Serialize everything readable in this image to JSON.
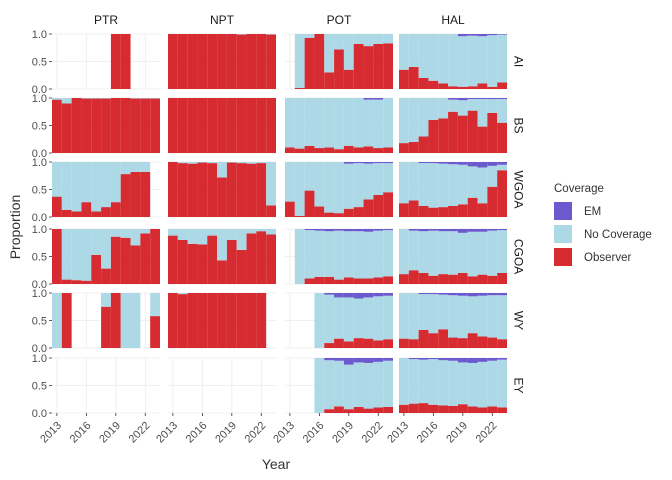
{
  "chart_data": {
    "type": "bar",
    "stacked": true,
    "xlabel": "Year",
    "ylabel": "Proportion",
    "facet_cols": [
      "PTR",
      "NPT",
      "POT",
      "HAL"
    ],
    "facet_rows": [
      "AI",
      "BS",
      "WGOA",
      "CGOA",
      "WY",
      "EY"
    ],
    "years": [
      2013,
      2014,
      2015,
      2016,
      2017,
      2018,
      2019,
      2020,
      2021,
      2022,
      2023
    ],
    "x_ticks": [
      2013,
      2016,
      2019,
      2022
    ],
    "x_tick_labels": [
      "2013",
      "2016",
      "2019",
      "2022"
    ],
    "ylim": [
      0,
      1
    ],
    "y_ticks": [
      0,
      0.5,
      1
    ],
    "y_tick_labels": [
      "0.0",
      "0.5",
      "1.0"
    ],
    "grid": true,
    "legend": {
      "title": "Coverage",
      "position": "right",
      "entries": [
        "EM",
        "No Coverage",
        "Observer"
      ]
    },
    "colors": {
      "EM": "#6a5acd",
      "No Coverage": "#add8e6",
      "Observer": "#d62b30"
    },
    "observer": {
      "PTR": {
        "AI": [
          null,
          null,
          null,
          null,
          null,
          null,
          1.0,
          1.0,
          null,
          null,
          null
        ],
        "BS": [
          0.97,
          0.9,
          1.0,
          0.99,
          0.99,
          0.99,
          1.0,
          1.0,
          0.99,
          0.99,
          0.99
        ],
        "WGOA": [
          0.37,
          0.13,
          0.1,
          0.27,
          0.1,
          0.18,
          0.27,
          0.78,
          0.82,
          0.82,
          null
        ],
        "CGOA": [
          1.0,
          0.08,
          0.07,
          0.06,
          0.53,
          0.28,
          0.86,
          0.84,
          0.7,
          0.92,
          1.0
        ],
        "WY": [
          0.0,
          1.0,
          null,
          null,
          null,
          0.75,
          1.0,
          0.0,
          0.0,
          null,
          0.58
        ],
        "EY": [
          null,
          null,
          null,
          null,
          null,
          null,
          null,
          null,
          null,
          null,
          null
        ]
      },
      "NPT": {
        "AI": [
          1.0,
          1.0,
          1.0,
          1.0,
          1.0,
          1.0,
          1.0,
          0.99,
          1.0,
          1.0,
          0.99
        ],
        "BS": [
          1.0,
          1.0,
          1.0,
          1.0,
          1.0,
          1.0,
          1.0,
          1.0,
          1.0,
          1.0,
          1.0
        ],
        "WGOA": [
          1.0,
          0.98,
          0.97,
          0.99,
          0.98,
          0.72,
          0.99,
          0.98,
          0.97,
          0.98,
          0.21
        ],
        "CGOA": [
          0.88,
          0.8,
          0.73,
          0.72,
          0.88,
          0.43,
          0.8,
          0.62,
          0.92,
          0.96,
          0.9
        ],
        "WY": [
          1.0,
          0.98,
          1.0,
          1.0,
          1.0,
          1.0,
          1.0,
          1.0,
          1.0,
          1.0,
          null
        ],
        "EY": [
          null,
          null,
          null,
          null,
          null,
          null,
          null,
          null,
          null,
          null,
          null
        ]
      },
      "POT": {
        "AI": [
          null,
          0.02,
          0.93,
          1.0,
          0.3,
          0.72,
          0.35,
          0.82,
          0.78,
          0.82,
          0.83
        ],
        "BS": [
          0.1,
          0.08,
          0.13,
          0.09,
          0.1,
          0.07,
          0.13,
          0.1,
          0.12,
          0.09,
          0.1
        ],
        "WGOA": [
          0.28,
          0.02,
          0.48,
          0.19,
          0.08,
          0.07,
          0.15,
          0.18,
          0.32,
          0.4,
          0.45
        ],
        "CGOA": [
          null,
          0.0,
          0.1,
          0.13,
          0.13,
          0.08,
          0.12,
          0.1,
          0.1,
          0.12,
          0.14
        ],
        "WY": [
          null,
          null,
          null,
          0.0,
          0.09,
          0.17,
          0.12,
          0.18,
          0.17,
          0.14,
          0.16
        ],
        "EY": [
          null,
          null,
          null,
          0.0,
          0.07,
          0.12,
          0.07,
          0.11,
          0.08,
          0.1,
          0.11
        ]
      },
      "HAL": {
        "AI": [
          0.35,
          0.4,
          0.2,
          0.15,
          0.1,
          0.05,
          0.04,
          0.05,
          0.1,
          0.04,
          0.12
        ],
        "BS": [
          0.18,
          0.2,
          0.3,
          0.6,
          0.63,
          0.75,
          0.68,
          0.77,
          0.48,
          0.73,
          0.55
        ],
        "WGOA": [
          0.25,
          0.3,
          0.2,
          0.17,
          0.18,
          0.2,
          0.23,
          0.35,
          0.25,
          0.55,
          0.85
        ],
        "CGOA": [
          0.18,
          0.25,
          0.2,
          0.15,
          0.18,
          0.17,
          0.2,
          0.14,
          0.17,
          0.15,
          0.2
        ],
        "WY": [
          0.17,
          0.16,
          0.33,
          0.27,
          0.34,
          0.19,
          0.18,
          0.27,
          0.21,
          0.19,
          0.16
        ],
        "EY": [
          0.15,
          0.17,
          0.18,
          0.15,
          0.14,
          0.13,
          0.16,
          0.12,
          0.1,
          0.12,
          0.1
        ]
      }
    },
    "em": {
      "PTR": {},
      "NPT": {},
      "POT": {
        "AI": [
          0,
          0,
          0,
          0,
          0,
          0,
          0,
          0,
          0,
          0,
          0
        ],
        "BS": [
          0,
          0,
          0,
          0,
          0,
          0,
          0,
          0,
          0.03,
          0.03,
          0
        ],
        "WGOA": [
          0,
          0,
          0,
          0,
          0,
          0,
          0.03,
          0.02,
          0.03,
          0.02,
          0.02
        ],
        "CGOA": [
          0,
          0,
          0.02,
          0.03,
          0.04,
          0.03,
          0.04,
          0.04,
          0.05,
          0.03,
          0.02
        ],
        "WY": [
          0,
          0,
          0,
          0,
          0.03,
          0.08,
          0.08,
          0.1,
          0.08,
          0.06,
          0.05
        ],
        "EY": [
          0,
          0,
          0,
          0,
          0.04,
          0.05,
          0.12,
          0.08,
          0.09,
          0.07,
          0.05
        ]
      },
      "HAL": {
        "AI": [
          0,
          0,
          0,
          0,
          0,
          0,
          0.04,
          0.03,
          0.04,
          0.02,
          0.01
        ],
        "BS": [
          0,
          0,
          0,
          0,
          0,
          0.03,
          0.04,
          0.02,
          0.02,
          0.02,
          0.02
        ],
        "WGOA": [
          0,
          0,
          0.02,
          0.02,
          0.03,
          0.04,
          0.05,
          0.08,
          0.1,
          0.07,
          0.05
        ],
        "CGOA": [
          0,
          0.03,
          0.04,
          0.03,
          0.04,
          0.04,
          0.07,
          0.05,
          0.05,
          0.03,
          0.02
        ],
        "WY": [
          0,
          0,
          0.02,
          0.02,
          0.03,
          0.04,
          0.05,
          0.06,
          0.05,
          0.04,
          0.04
        ],
        "EY": [
          0,
          0.02,
          0.03,
          0.02,
          0.04,
          0.05,
          0.08,
          0.09,
          0.07,
          0.05,
          0.03
        ]
      }
    }
  }
}
